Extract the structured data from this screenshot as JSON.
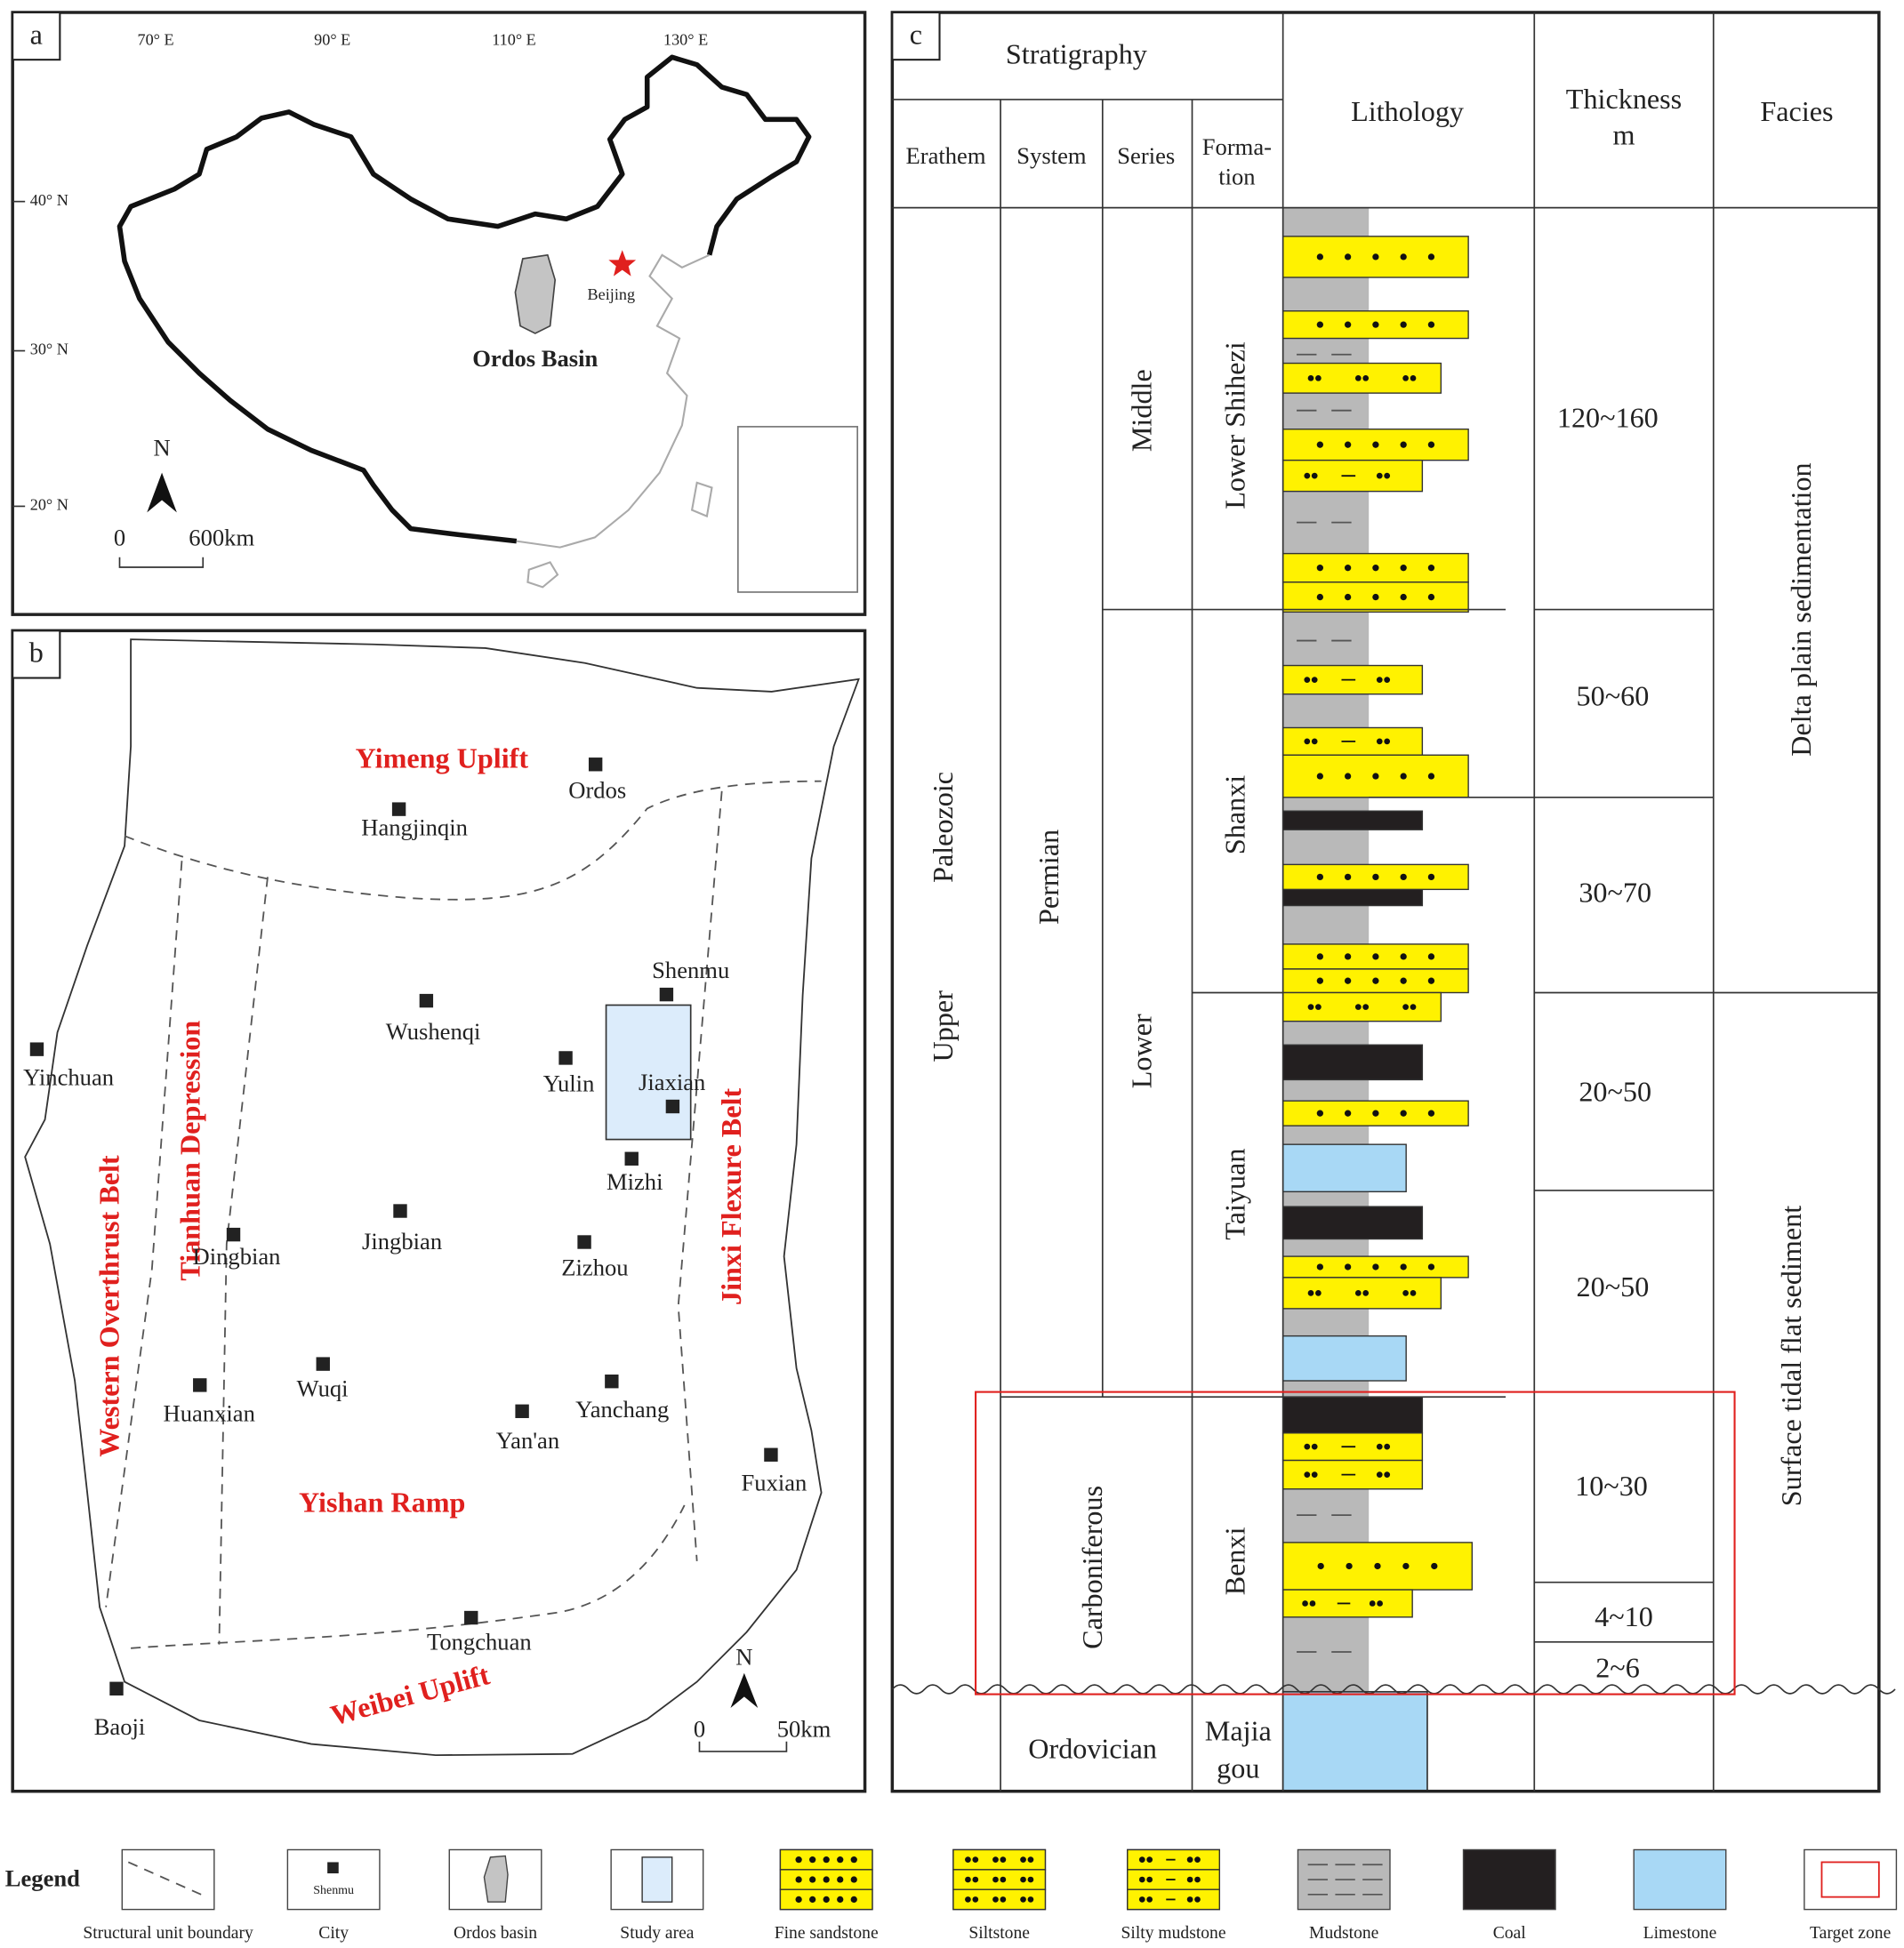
{
  "panel_a": {
    "label": "a",
    "longitudes": [
      "70° E",
      "90° E",
      "110° E",
      "130° E"
    ],
    "latitudes": [
      "40° N",
      "30° N",
      "20° N"
    ],
    "capital": "Beijing",
    "basin": "Ordos Basin",
    "north": "N",
    "scale": {
      "start": "0",
      "end": "600km"
    }
  },
  "panel_b": {
    "label": "b",
    "units": [
      "Yimeng Uplift",
      "Tianhuan Depression",
      "Western Overthrust Belt",
      "Jinxi Flexure Belt",
      "Yishan Ramp",
      "Weibei Uplift"
    ],
    "cities": [
      "Ordos",
      "Hangjinqin",
      "Shenmu",
      "Wushenqi",
      "Yinchuan",
      "Yulin",
      "Jiaxian",
      "Mizhi",
      "Dingbian",
      "Jingbian",
      "Zizhou",
      "Huanxian",
      "Wuqi",
      "Yanchang",
      "Yan'an",
      "Fuxian",
      "Tongchuan",
      "Baoji"
    ],
    "north": "N",
    "scale": {
      "start": "0",
      "end": "50km"
    }
  },
  "panel_c": {
    "label": "c",
    "headers": {
      "stratigraphy": "Stratigraphy",
      "erathem": "Erathem",
      "system": "System",
      "series": "Series",
      "formation": [
        "Forma-",
        "tion"
      ],
      "lithology": "Lithology",
      "thickness": [
        "Thickness",
        "m"
      ],
      "facies": "Facies"
    },
    "erathem": [
      "Upper",
      "Paleozoic"
    ],
    "systems": [
      "Permian",
      "Carboniferous",
      "Ordovician"
    ],
    "series": [
      "Middle",
      "Lower"
    ],
    "formations": [
      "Lower Shihezi",
      "Shanxi",
      "Taiyuan",
      "Benxi"
    ],
    "majiagou": [
      "Majia",
      "gou"
    ],
    "thickness": [
      "120~160",
      "50~60",
      "30~70",
      "20~50",
      "20~50",
      "10~30",
      "4~10",
      "2~6"
    ],
    "facies": [
      "Delta plain sedimentation",
      "Surface tidal flat sediment"
    ]
  },
  "legend": {
    "title": "Legend",
    "city_sample": "Shenmu",
    "items": [
      "Structural unit boundary",
      "City",
      "Ordos basin",
      "Study area",
      "Fine sandstone",
      "Siltstone",
      "Silty mudstone",
      "Mudstone",
      "Coal",
      "Limestone",
      "Target zone"
    ]
  }
}
